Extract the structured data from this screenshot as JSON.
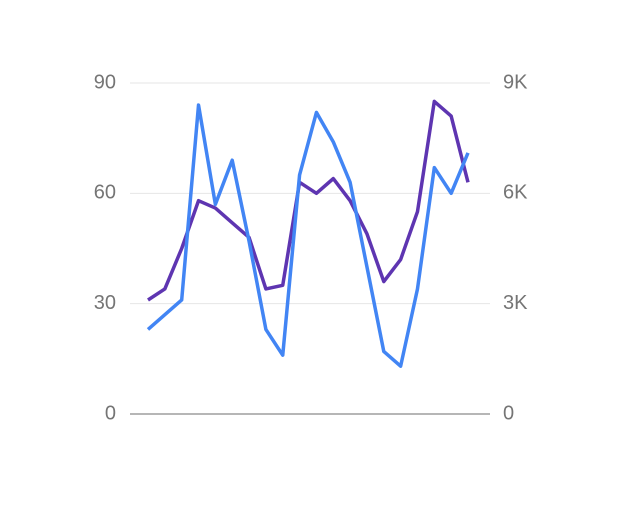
{
  "chart_data": {
    "type": "line",
    "categories": [
      null,
      null,
      null,
      null,
      null,
      null,
      null,
      null,
      null,
      null,
      null,
      null,
      null,
      null,
      null,
      null,
      null,
      null,
      null,
      null
    ],
    "series": [
      {
        "color": "#5e35b1",
        "values": [
          31,
          34,
          45,
          58,
          56,
          52,
          48,
          34,
          35,
          63,
          60,
          64,
          58,
          49,
          36,
          42,
          55,
          85,
          81,
          63
        ]
      },
      {
        "color": "#4285f4",
        "axis": "y2",
        "values": [
          2300,
          2700,
          3100,
          8400,
          5700,
          6900,
          4700,
          2300,
          1600,
          6500,
          8200,
          7400,
          6300,
          4000,
          1700,
          1300,
          3400,
          6700,
          6000,
          7100
        ]
      }
    ],
    "ylim": [
      0,
      90
    ],
    "yticks": [
      0,
      30,
      60,
      90
    ],
    "y2lim": [
      0,
      9000
    ],
    "y2ticks": [
      0,
      {
        "value": 3000,
        "label": "3K"
      },
      {
        "value": 6000,
        "label": "6K"
      },
      {
        "value": 9000,
        "label": "9K"
      }
    ],
    "grid": true
  }
}
